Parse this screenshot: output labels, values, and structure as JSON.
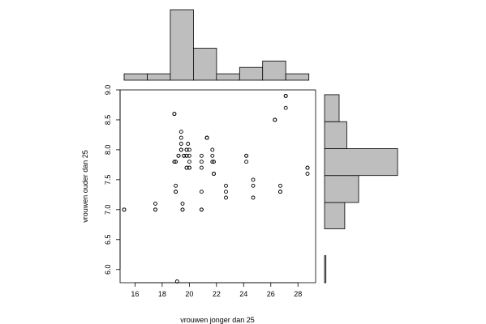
{
  "chart_data": [
    {
      "type": "scatter",
      "xlabel": "vrouwen jonger dan 25",
      "ylabel": "vrouwen ouder dan 25",
      "xlim": [
        14.9,
        29.3
      ],
      "ylim": [
        5.78,
        9.0
      ],
      "x_ticks": [
        16,
        18,
        20,
        22,
        24,
        26,
        28
      ],
      "y_ticks": [
        6.0,
        6.5,
        7.0,
        7.5,
        8.0,
        8.5,
        9.0
      ],
      "x_tick_labels": [
        "16",
        "18",
        "20",
        "22",
        "24",
        "26",
        "28"
      ],
      "y_tick_labels": [
        "6.0",
        "6.5",
        "7.0",
        "7.5",
        "8.0",
        "8.5",
        "9.0"
      ],
      "grid": false,
      "points": [
        {
          "x": 15.2,
          "y": 7.0
        },
        {
          "x": 15.2,
          "y": 7.0
        },
        {
          "x": 17.5,
          "y": 7.1
        },
        {
          "x": 17.5,
          "y": 7.0
        },
        {
          "x": 17.5,
          "y": 7.0
        },
        {
          "x": 18.9,
          "y": 8.6
        },
        {
          "x": 18.9,
          "y": 8.6
        },
        {
          "x": 18.9,
          "y": 7.8
        },
        {
          "x": 19.0,
          "y": 7.8
        },
        {
          "x": 19.0,
          "y": 7.4
        },
        {
          "x": 19.0,
          "y": 7.3
        },
        {
          "x": 19.0,
          "y": 7.3
        },
        {
          "x": 19.1,
          "y": 5.8
        },
        {
          "x": 19.2,
          "y": 7.9
        },
        {
          "x": 19.2,
          "y": 7.9
        },
        {
          "x": 19.4,
          "y": 8.3
        },
        {
          "x": 19.4,
          "y": 8.2
        },
        {
          "x": 19.4,
          "y": 8.1
        },
        {
          "x": 19.4,
          "y": 8.0
        },
        {
          "x": 19.4,
          "y": 8.0
        },
        {
          "x": 19.5,
          "y": 7.1
        },
        {
          "x": 19.5,
          "y": 7.0
        },
        {
          "x": 19.5,
          "y": 7.0
        },
        {
          "x": 19.6,
          "y": 7.9
        },
        {
          "x": 19.6,
          "y": 7.9
        },
        {
          "x": 19.8,
          "y": 8.0
        },
        {
          "x": 19.8,
          "y": 8.0
        },
        {
          "x": 19.8,
          "y": 7.9
        },
        {
          "x": 19.8,
          "y": 7.9
        },
        {
          "x": 19.8,
          "y": 7.7
        },
        {
          "x": 19.8,
          "y": 7.7
        },
        {
          "x": 19.9,
          "y": 8.1
        },
        {
          "x": 20.0,
          "y": 8.0
        },
        {
          "x": 20.0,
          "y": 7.9
        },
        {
          "x": 20.0,
          "y": 7.8
        },
        {
          "x": 20.0,
          "y": 7.7
        },
        {
          "x": 20.0,
          "y": 7.7
        },
        {
          "x": 20.9,
          "y": 7.9
        },
        {
          "x": 20.9,
          "y": 7.8
        },
        {
          "x": 20.9,
          "y": 7.7
        },
        {
          "x": 20.9,
          "y": 7.3
        },
        {
          "x": 20.9,
          "y": 7.0
        },
        {
          "x": 20.9,
          "y": 7.0
        },
        {
          "x": 21.3,
          "y": 8.2
        },
        {
          "x": 21.3,
          "y": 8.2
        },
        {
          "x": 21.3,
          "y": 8.2
        },
        {
          "x": 21.7,
          "y": 8.0
        },
        {
          "x": 21.7,
          "y": 7.9
        },
        {
          "x": 21.7,
          "y": 7.8
        },
        {
          "x": 21.8,
          "y": 7.8
        },
        {
          "x": 21.8,
          "y": 7.6
        },
        {
          "x": 21.8,
          "y": 7.6
        },
        {
          "x": 22.7,
          "y": 7.4
        },
        {
          "x": 22.7,
          "y": 7.3
        },
        {
          "x": 22.7,
          "y": 7.2
        },
        {
          "x": 24.2,
          "y": 7.9
        },
        {
          "x": 24.2,
          "y": 7.9
        },
        {
          "x": 24.2,
          "y": 7.8
        },
        {
          "x": 24.7,
          "y": 7.5
        },
        {
          "x": 24.7,
          "y": 7.4
        },
        {
          "x": 24.7,
          "y": 7.2
        },
        {
          "x": 26.3,
          "y": 8.5
        },
        {
          "x": 26.3,
          "y": 8.5
        },
        {
          "x": 26.7,
          "y": 7.4
        },
        {
          "x": 26.7,
          "y": 7.3
        },
        {
          "x": 26.7,
          "y": 7.3
        },
        {
          "x": 27.1,
          "y": 8.9
        },
        {
          "x": 27.1,
          "y": 8.9
        },
        {
          "x": 27.1,
          "y": 8.7
        },
        {
          "x": 28.7,
          "y": 7.7
        },
        {
          "x": 28.7,
          "y": 7.7
        },
        {
          "x": 28.7,
          "y": 7.6
        }
      ]
    },
    {
      "type": "bar",
      "orientation": "vertical",
      "position": "top",
      "bin_edges": [
        15.2,
        16.9,
        18.6,
        20.3,
        22.0,
        23.7,
        25.4,
        27.1,
        28.8
      ],
      "values": [
        1,
        1,
        11,
        5,
        1,
        2,
        3,
        1
      ]
    },
    {
      "type": "bar",
      "orientation": "horizontal",
      "position": "right",
      "bin_edges": [
        5.78,
        6.23,
        6.68,
        7.12,
        7.57,
        8.02,
        8.47,
        8.92
      ],
      "values": [
        0.2,
        0,
        2.9,
        4.9,
        10.5,
        3.2,
        2.1
      ]
    }
  ]
}
